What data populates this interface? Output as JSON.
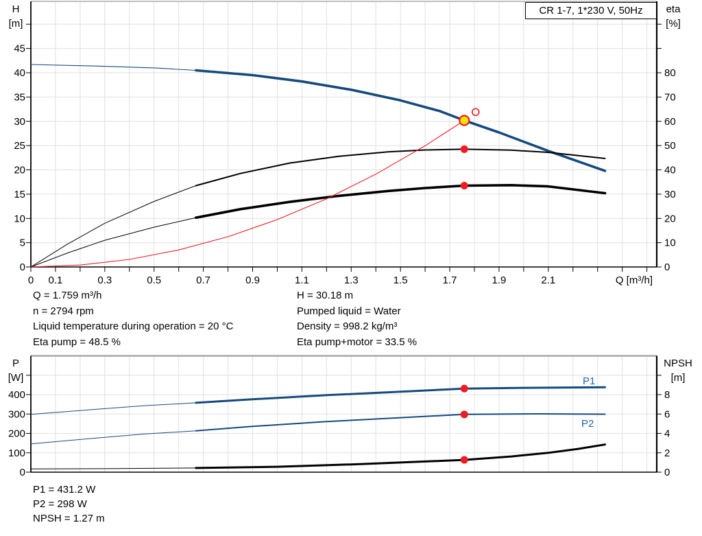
{
  "title_box": "CR 1-7, 1*230 V, 50Hz",
  "colors": {
    "blue": "#154a7d",
    "label_blue": "#2563a8",
    "red": "#ee1c23",
    "yellow": "#ffe200",
    "grid": "#e0e0e0",
    "border_grey": "#a8a8a8",
    "black": "#000000"
  },
  "info": {
    "top_left": [
      "Q = 1.759 m³/h",
      "n = 2794 rpm",
      "Liquid temperature during operation = 20 °C",
      "Eta pump = 48.5 %"
    ],
    "top_right": [
      "H = 30.18 m",
      "Pumped liquid = Water",
      "Density = 998.2 kg/m³",
      "Eta pump+motor = 33.5 %"
    ],
    "bottom": [
      "P1 = 431.2 W",
      "P2 = 298 W",
      "NPSH = 1.27 m"
    ]
  },
  "series_labels": {
    "p1": "P1",
    "p2": "P2"
  },
  "chart_data": [
    {
      "type": "line",
      "name": "qh-eta-chart",
      "x": {
        "label": "Q [m³/h]",
        "min": 0,
        "max": 2.54,
        "tick_step": 0.1,
        "show_ticks": true,
        "tick_labels": [
          {
            "v": 0,
            "t": "0"
          },
          {
            "v": 0.1,
            "t": "0.1"
          },
          {
            "v": 0.3,
            "t": "0.3"
          },
          {
            "v": 0.5,
            "t": "0.5"
          },
          {
            "v": 0.7,
            "t": "0.7"
          },
          {
            "v": 0.9,
            "t": "0.9"
          },
          {
            "v": 1.1,
            "t": "1.1"
          },
          {
            "v": 1.3,
            "t": "1.3"
          },
          {
            "v": 1.5,
            "t": "1.5"
          },
          {
            "v": 1.7,
            "t": "1.7"
          },
          {
            "v": 1.9,
            "t": "1.9"
          },
          {
            "v": 2.1,
            "t": "2.1"
          }
        ]
      },
      "y_left": {
        "title": [
          "H",
          "[m]"
        ],
        "min": 0,
        "max": 54.7,
        "tick_step": 5,
        "tick_max": 50,
        "labels": [
          {
            "v": 0,
            "t": "0"
          },
          {
            "v": 5,
            "t": "5"
          },
          {
            "v": 10,
            "t": "10"
          },
          {
            "v": 15,
            "t": "15"
          },
          {
            "v": 20,
            "t": "20"
          },
          {
            "v": 25,
            "t": "25"
          },
          {
            "v": 30,
            "t": "30"
          },
          {
            "v": 35,
            "t": "35"
          },
          {
            "v": 40,
            "t": "40"
          },
          {
            "v": 45,
            "t": "45"
          }
        ]
      },
      "y_right": {
        "title": [
          "eta",
          "[%]"
        ],
        "min": 0,
        "max": 109.4,
        "tick_step": 10,
        "tick_max": 100,
        "labels": [
          {
            "v": 0,
            "t": "0"
          },
          {
            "v": 10,
            "t": "10"
          },
          {
            "v": 20,
            "t": "20"
          },
          {
            "v": 30,
            "t": "30"
          },
          {
            "v": 40,
            "t": "40"
          },
          {
            "v": 50,
            "t": "50"
          },
          {
            "v": 60,
            "t": "60"
          },
          {
            "v": 70,
            "t": "70"
          },
          {
            "v": 80,
            "t": "80"
          }
        ]
      },
      "series": [
        {
          "name": "head",
          "yaxis": "left",
          "color": "blue",
          "thin_until": 0.67,
          "thin_w": 1.1,
          "thick_w": 3.6,
          "points": [
            [
              0,
              41.7
            ],
            [
              0.25,
              41.4
            ],
            [
              0.5,
              41.0
            ],
            [
              0.67,
              40.5
            ],
            [
              0.9,
              39.5
            ],
            [
              1.1,
              38.2
            ],
            [
              1.3,
              36.5
            ],
            [
              1.5,
              34.3
            ],
            [
              1.66,
              32.1
            ],
            [
              1.759,
              30.18
            ],
            [
              1.9,
              27.7
            ],
            [
              2.1,
              23.9
            ],
            [
              2.33,
              19.8
            ]
          ]
        },
        {
          "name": "eta-pump",
          "yaxis": "right",
          "color": "black",
          "thin_until": 0.67,
          "thin_w": 1,
          "thick_w": 2,
          "points": [
            [
              0,
              0
            ],
            [
              0.15,
              9.5
            ],
            [
              0.3,
              18
            ],
            [
              0.5,
              27
            ],
            [
              0.67,
              33.5
            ],
            [
              0.85,
              38.5
            ],
            [
              1.05,
              42.8
            ],
            [
              1.25,
              45.6
            ],
            [
              1.45,
              47.4
            ],
            [
              1.6,
              48.2
            ],
            [
              1.759,
              48.5
            ],
            [
              1.95,
              48.1
            ],
            [
              2.1,
              47.2
            ],
            [
              2.33,
              44.7
            ]
          ]
        },
        {
          "name": "eta-pump-motor",
          "yaxis": "right",
          "color": "black",
          "thin_until": 0.67,
          "thin_w": 1,
          "thick_w": 3.6,
          "points": [
            [
              0,
              0
            ],
            [
              0.15,
              5.8
            ],
            [
              0.3,
              11
            ],
            [
              0.5,
              16.4
            ],
            [
              0.67,
              20.3
            ],
            [
              0.85,
              23.8
            ],
            [
              1.05,
              26.8
            ],
            [
              1.25,
              29.3
            ],
            [
              1.45,
              31.3
            ],
            [
              1.6,
              32.5
            ],
            [
              1.759,
              33.5
            ],
            [
              1.95,
              33.7
            ],
            [
              2.1,
              33.2
            ],
            [
              2.33,
              30.4
            ]
          ]
        },
        {
          "name": "system-curve",
          "yaxis": "left",
          "color": "red",
          "thin_until": 9,
          "thin_w": 1.1,
          "thick_w": 1.1,
          "points": [
            [
              0,
              0
            ],
            [
              0.2,
              0.39
            ],
            [
              0.4,
              1.56
            ],
            [
              0.6,
              3.51
            ],
            [
              0.8,
              6.24
            ],
            [
              1.0,
              9.75
            ],
            [
              1.2,
              14.04
            ],
            [
              1.4,
              19.11
            ],
            [
              1.6,
              24.96
            ],
            [
              1.759,
              30.18
            ]
          ]
        }
      ],
      "markers": [
        {
          "type": "dot",
          "yaxis": "right",
          "q": 1.759,
          "v": 48.5
        },
        {
          "type": "dot",
          "yaxis": "right",
          "q": 1.759,
          "v": 33.5
        },
        {
          "type": "open",
          "yaxis": "left",
          "q": 1.805,
          "v": 31.9
        },
        {
          "type": "duty",
          "yaxis": "left",
          "q": 1.759,
          "v": 30.18
        }
      ]
    },
    {
      "type": "line",
      "name": "power-npsh-chart",
      "x": {
        "label": "",
        "min": 0,
        "max": 2.54,
        "tick_step": 0.1,
        "show_ticks": false,
        "tick_labels": []
      },
      "y_left": {
        "title": [
          "P",
          "[W]"
        ],
        "min": 0,
        "max": 600,
        "tick_step": 100,
        "tick_max": 500,
        "labels": [
          {
            "v": 0,
            "t": "0"
          },
          {
            "v": 100,
            "t": "100"
          },
          {
            "v": 200,
            "t": "200"
          },
          {
            "v": 300,
            "t": "300"
          },
          {
            "v": 400,
            "t": "400"
          }
        ]
      },
      "y_right": {
        "title": [
          "NPSH",
          "[m]"
        ],
        "min": 0,
        "max": 12,
        "tick_step": 2,
        "tick_max": 10,
        "labels": [
          {
            "v": 0,
            "t": "0"
          },
          {
            "v": 2,
            "t": "2"
          },
          {
            "v": 4,
            "t": "4"
          },
          {
            "v": 6,
            "t": "6"
          },
          {
            "v": 8,
            "t": "8"
          }
        ]
      },
      "series": [
        {
          "name": "p1",
          "yaxis": "left",
          "color": "blue",
          "thin_until": 0.67,
          "thin_w": 1,
          "thick_w": 3,
          "points": [
            [
              0,
              298
            ],
            [
              0.25,
              323
            ],
            [
              0.45,
              342
            ],
            [
              0.67,
              358
            ],
            [
              0.9,
              376
            ],
            [
              1.2,
              397
            ],
            [
              1.5,
              415
            ],
            [
              1.759,
              431.2
            ],
            [
              2.0,
              435
            ],
            [
              2.33,
              438
            ]
          ]
        },
        {
          "name": "p2",
          "yaxis": "left",
          "color": "blue",
          "thin_until": 0.67,
          "thin_w": 1,
          "thick_w": 2,
          "points": [
            [
              0,
              146
            ],
            [
              0.25,
              174
            ],
            [
              0.45,
              196
            ],
            [
              0.67,
              213
            ],
            [
              0.9,
              236
            ],
            [
              1.2,
              261
            ],
            [
              1.5,
              281
            ],
            [
              1.759,
              298
            ],
            [
              2.05,
              301
            ],
            [
              2.33,
              299
            ]
          ]
        },
        {
          "name": "npsh",
          "yaxis": "right",
          "color": "black",
          "thin_until": 0.67,
          "thin_w": 1,
          "thick_w": 3,
          "points": [
            [
              0,
              0.33
            ],
            [
              0.35,
              0.37
            ],
            [
              0.67,
              0.43
            ],
            [
              1.0,
              0.56
            ],
            [
              1.3,
              0.8
            ],
            [
              1.5,
              1.0
            ],
            [
              1.759,
              1.27
            ],
            [
              1.95,
              1.62
            ],
            [
              2.1,
              2.0
            ],
            [
              2.22,
              2.4
            ],
            [
              2.33,
              2.85
            ]
          ]
        }
      ],
      "markers": [
        {
          "type": "dot",
          "yaxis": "left",
          "q": 1.759,
          "v": 431.2
        },
        {
          "type": "dot",
          "yaxis": "left",
          "q": 1.759,
          "v": 298
        },
        {
          "type": "dot",
          "yaxis": "right",
          "q": 1.759,
          "v": 1.27
        }
      ]
    }
  ]
}
